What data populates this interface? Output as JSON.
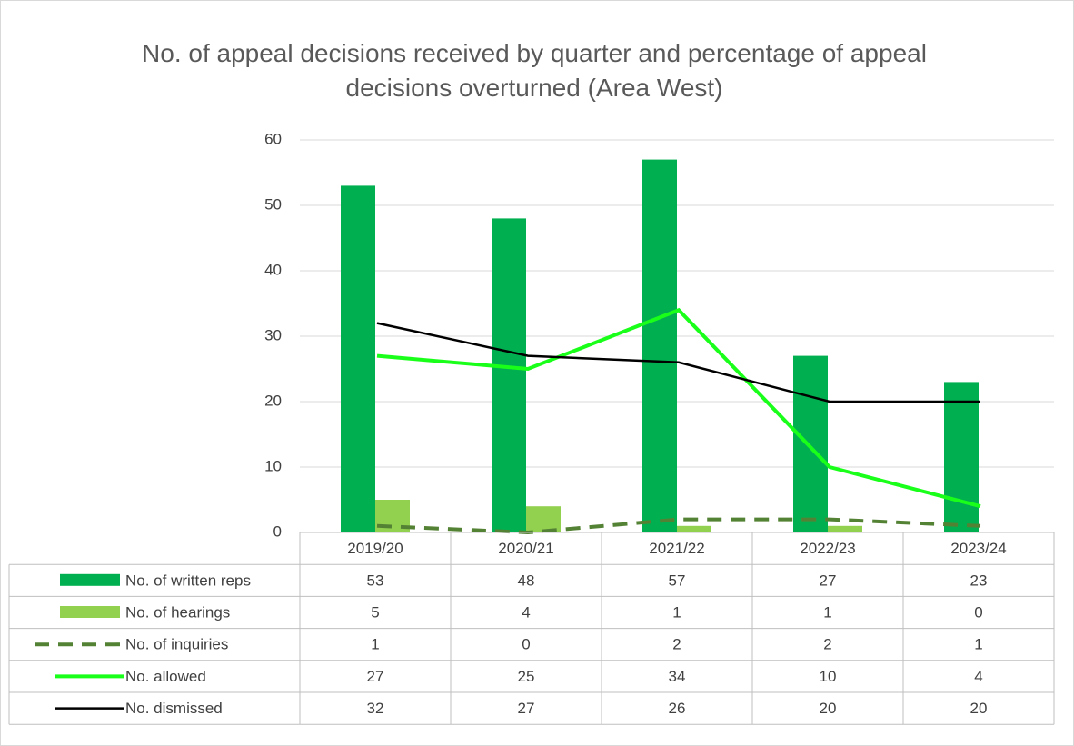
{
  "chart_data": {
    "type": "combo",
    "title": "No. of appeal decisions received by quarter and percentage of appeal decisions overturned (Area West)",
    "categories": [
      "2019/20",
      "2020/21",
      "2021/22",
      "2022/23",
      "2023/24"
    ],
    "series": [
      {
        "name": "No. of written reps",
        "type": "bar",
        "color": "#00b050",
        "values": [
          53,
          48,
          57,
          27,
          23
        ]
      },
      {
        "name": "No. of hearings",
        "type": "bar",
        "color": "#92d050",
        "values": [
          5,
          4,
          1,
          1,
          0
        ]
      },
      {
        "name": "No. of inquiries",
        "type": "line",
        "dashed": true,
        "color": "#548235",
        "values": [
          1,
          0,
          2,
          2,
          1
        ]
      },
      {
        "name": "No. allowed",
        "type": "line",
        "color": "#1aff1a",
        "values": [
          27,
          25,
          34,
          10,
          4
        ]
      },
      {
        "name": "No. dismissed",
        "type": "line",
        "color": "#000000",
        "values": [
          32,
          27,
          26,
          20,
          20
        ]
      }
    ],
    "ylim": [
      0,
      60
    ],
    "yticks": [
      0,
      10,
      20,
      30,
      40,
      50,
      60
    ],
    "grid": true,
    "data_table": true
  }
}
